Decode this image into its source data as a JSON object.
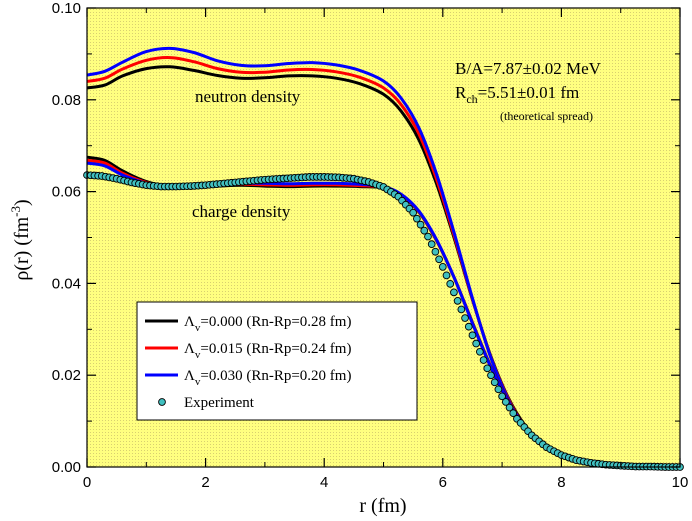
{
  "chart_data": {
    "type": "line",
    "title": "",
    "xlabel": "r (fm)",
    "ylabel": "ρ(r) (fm⁻³)",
    "ylabel_main": "ρ(r) (fm",
    "ylabel_sup": "-3",
    "ylabel_close": ")",
    "xlim": [
      0,
      10
    ],
    "ylim": [
      0,
      0.1
    ],
    "x_ticks": [
      0,
      2,
      4,
      6,
      8,
      10
    ],
    "x_tick_labels": [
      "0",
      "2",
      "4",
      "6",
      "8",
      "10"
    ],
    "y_ticks": [
      0,
      0.02,
      0.04,
      0.06,
      0.08,
      0.1
    ],
    "y_tick_labels": [
      "0.00",
      "0.02",
      "0.04",
      "0.06",
      "0.08",
      "0.10"
    ],
    "grid": false,
    "background": "#ffff80",
    "legend_position": "bottom-left",
    "annotations": {
      "neutron_label": "neutron density",
      "charge_label": "charge density",
      "binding": "B/A=7.87±0.02 MeV",
      "radius_main": "R",
      "radius_sub": "ch",
      "radius_value": "=5.51±0.01 fm",
      "spread": "(theoretical spread)"
    },
    "series": [
      {
        "name": "Λᵥ=0.000 (Rn-Rp=0.28 fm)",
        "legend_main": "Λ",
        "legend_sub": "v",
        "legend_rest": "=0.000 (Rn-Rp=0.28 fm)",
        "color": "#000000",
        "neutron": {
          "x": [
            0,
            0.3,
            0.6,
            1.0,
            1.4,
            1.8,
            2.2,
            2.6,
            3.0,
            3.4,
            3.8,
            4.2,
            4.6,
            5.0,
            5.3,
            5.6,
            5.9,
            6.2,
            6.5,
            6.8,
            7.1,
            7.4,
            7.7,
            8.0,
            8.3,
            8.6,
            9.0,
            9.4,
            9.8,
            10.0
          ],
          "y": [
            0.0826,
            0.0832,
            0.0852,
            0.0868,
            0.0872,
            0.0864,
            0.0853,
            0.0847,
            0.0848,
            0.0852,
            0.0852,
            0.0847,
            0.0835,
            0.0812,
            0.0775,
            0.0712,
            0.0615,
            0.0495,
            0.0365,
            0.0245,
            0.0152,
            0.0088,
            0.0048,
            0.0025,
            0.0013,
            0.0006,
            0.0002,
            0.0001,
            0.0,
            0.0
          ]
        },
        "charge": {
          "x": [
            0,
            0.3,
            0.6,
            1.0,
            1.4,
            1.8,
            2.2,
            2.6,
            3.0,
            3.4,
            3.8,
            4.2,
            4.6,
            5.0,
            5.3,
            5.6,
            5.9,
            6.2,
            6.5,
            6.8,
            7.1,
            7.4,
            7.7,
            8.0,
            8.3,
            8.6,
            9.0,
            9.4,
            9.8,
            10.0
          ],
          "y": [
            0.0675,
            0.0668,
            0.0645,
            0.0622,
            0.0611,
            0.061,
            0.0612,
            0.0614,
            0.0612,
            0.0611,
            0.0612,
            0.0612,
            0.0611,
            0.0608,
            0.0592,
            0.0555,
            0.0492,
            0.041,
            0.0315,
            0.0222,
            0.0145,
            0.0088,
            0.005,
            0.0027,
            0.0014,
            0.0007,
            0.0003,
            0.0001,
            0.0,
            0.0
          ]
        }
      },
      {
        "name": "Λᵥ=0.015 (Rn-Rp=0.24 fm)",
        "legend_main": "Λ",
        "legend_sub": "v",
        "legend_rest": "=0.015 (Rn-Rp=0.24 fm)",
        "color": "#ff0000",
        "neutron": {
          "x": [
            0,
            0.3,
            0.6,
            1.0,
            1.4,
            1.8,
            2.2,
            2.6,
            3.0,
            3.4,
            3.8,
            4.2,
            4.6,
            5.0,
            5.3,
            5.6,
            5.9,
            6.2,
            6.5,
            6.8,
            7.1,
            7.4,
            7.7,
            8.0,
            8.3,
            8.6,
            9.0,
            9.4,
            9.8,
            10.0
          ],
          "y": [
            0.084,
            0.0847,
            0.0867,
            0.0886,
            0.0892,
            0.0883,
            0.0868,
            0.086,
            0.086,
            0.0865,
            0.0866,
            0.0861,
            0.0849,
            0.0826,
            0.0789,
            0.0725,
            0.0625,
            0.05,
            0.0366,
            0.0243,
            0.015,
            0.0086,
            0.0047,
            0.0024,
            0.0012,
            0.0006,
            0.0002,
            0.0001,
            0.0,
            0.0
          ]
        },
        "charge": {
          "x": [
            0,
            0.3,
            0.6,
            1.0,
            1.4,
            1.8,
            2.2,
            2.6,
            3.0,
            3.4,
            3.8,
            4.2,
            4.6,
            5.0,
            5.3,
            5.6,
            5.9,
            6.2,
            6.5,
            6.8,
            7.1,
            7.4,
            7.7,
            8.0,
            8.3,
            8.6,
            9.0,
            9.4,
            9.8,
            10.0
          ],
          "y": [
            0.0668,
            0.0662,
            0.064,
            0.062,
            0.0611,
            0.0611,
            0.0614,
            0.0616,
            0.0615,
            0.0614,
            0.0615,
            0.0615,
            0.0613,
            0.0609,
            0.0593,
            0.0556,
            0.0493,
            0.041,
            0.0314,
            0.0221,
            0.0144,
            0.0087,
            0.0049,
            0.0026,
            0.0013,
            0.0007,
            0.0003,
            0.0001,
            0.0,
            0.0
          ]
        }
      },
      {
        "name": "Λᵥ=0.030 (Rn-Rp=0.20 fm)",
        "legend_main": "Λ",
        "legend_sub": "v",
        "legend_rest": "=0.030 (Rn-Rp=0.20 fm)",
        "color": "#0000ff",
        "neutron": {
          "x": [
            0,
            0.3,
            0.6,
            1.0,
            1.4,
            1.8,
            2.2,
            2.6,
            3.0,
            3.4,
            3.8,
            4.2,
            4.6,
            5.0,
            5.3,
            5.6,
            5.9,
            6.2,
            6.5,
            6.8,
            7.1,
            7.4,
            7.7,
            8.0,
            8.3,
            8.6,
            9.0,
            9.4,
            9.8,
            10.0
          ],
          "y": [
            0.0854,
            0.0862,
            0.0882,
            0.0905,
            0.0912,
            0.0903,
            0.0885,
            0.0875,
            0.0874,
            0.0879,
            0.0881,
            0.0876,
            0.0864,
            0.0841,
            0.0803,
            0.0738,
            0.0636,
            0.0506,
            0.0368,
            0.0242,
            0.0148,
            0.0084,
            0.0045,
            0.0023,
            0.0012,
            0.0006,
            0.0002,
            0.0001,
            0.0,
            0.0
          ]
        },
        "charge": {
          "x": [
            0,
            0.3,
            0.6,
            1.0,
            1.4,
            1.8,
            2.2,
            2.6,
            3.0,
            3.4,
            3.8,
            4.2,
            4.6,
            5.0,
            5.3,
            5.6,
            5.9,
            6.2,
            6.5,
            6.8,
            7.1,
            7.4,
            7.7,
            8.0,
            8.3,
            8.6,
            9.0,
            9.4,
            9.8,
            10.0
          ],
          "y": [
            0.0662,
            0.0656,
            0.0636,
            0.0618,
            0.0611,
            0.0612,
            0.0616,
            0.0618,
            0.0618,
            0.0617,
            0.0618,
            0.0618,
            0.0616,
            0.0611,
            0.0594,
            0.0557,
            0.0494,
            0.041,
            0.0313,
            0.022,
            0.0143,
            0.0086,
            0.0048,
            0.0025,
            0.0013,
            0.0006,
            0.0003,
            0.0001,
            0.0,
            0.0
          ]
        }
      }
    ],
    "experiment": {
      "name": "Experiment",
      "color": "#40c0c0",
      "x": [
        0,
        0.25,
        0.5,
        0.75,
        1.0,
        1.25,
        1.5,
        1.75,
        2.0,
        2.25,
        2.5,
        2.75,
        3.0,
        3.25,
        3.5,
        3.75,
        4.0,
        4.25,
        4.5,
        4.75,
        5.0,
        5.25,
        5.5,
        5.75,
        6.0,
        6.25,
        6.5,
        6.75,
        7.0,
        7.25,
        7.5,
        7.75,
        8.0,
        8.25,
        8.5,
        8.75,
        9.0,
        9.25,
        9.5,
        9.75,
        10.0
      ],
      "y": [
        0.0636,
        0.0634,
        0.0628,
        0.062,
        0.0614,
        0.0611,
        0.0611,
        0.0612,
        0.0614,
        0.0617,
        0.062,
        0.0623,
        0.0626,
        0.0628,
        0.063,
        0.0632,
        0.0632,
        0.0631,
        0.0628,
        0.0621,
        0.061,
        0.0589,
        0.0554,
        0.0502,
        0.0436,
        0.0362,
        0.0287,
        0.0215,
        0.0154,
        0.0105,
        0.0069,
        0.0043,
        0.0026,
        0.0015,
        0.0009,
        0.0005,
        0.0003,
        0.0001,
        0.0001,
        0.0,
        0.0
      ]
    }
  }
}
